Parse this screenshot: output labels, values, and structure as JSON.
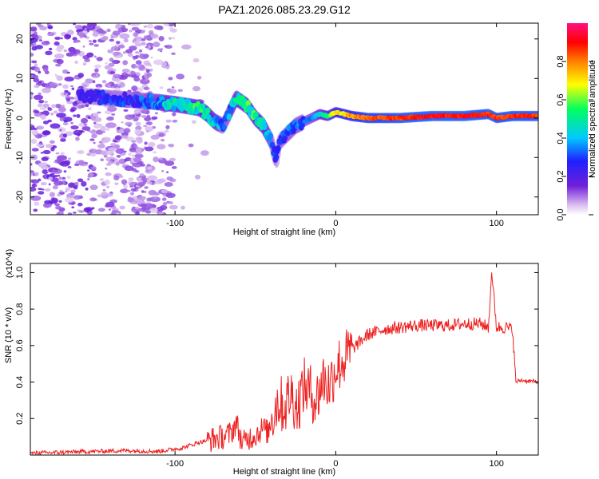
{
  "title": "PAZ1.2026.085.23.29.G12",
  "chart_data": [
    {
      "type": "heatmap",
      "name": "spectrogram",
      "xlabel": "Height of straight line (km)",
      "ylabel": "Frequency (Hz)",
      "xlim": [
        -190,
        126
      ],
      "ylim": [
        -24.5,
        24
      ],
      "xticks": [
        -100,
        0,
        100
      ],
      "yticks": [
        -20,
        -10,
        0,
        10,
        20
      ],
      "colorbar": {
        "label": "Normalized spectral amplitude",
        "range": [
          0,
          1
        ],
        "ticks": [
          0.0,
          0.2,
          0.4,
          0.6,
          0.8
        ],
        "colormap": [
          "#ffffff",
          "#dcc0f0",
          "#7020d8",
          "#2020ff",
          "#00c8ff",
          "#00ff60",
          "#ffff00",
          "#ff8000",
          "#ff0000",
          "#ff1080"
        ]
      },
      "main_trace": {
        "x": [
          -155,
          -140,
          -125,
          -110,
          -100,
          -92,
          -85,
          -80,
          -75,
          -70,
          -62,
          -55,
          -50,
          -45,
          -40,
          -37,
          -35,
          -30,
          -25,
          -20,
          -15,
          -10,
          -5,
          0,
          5,
          10,
          20,
          40,
          60,
          80,
          95,
          100,
          110,
          126
        ],
        "y": [
          5.5,
          5,
          4.5,
          4,
          3.5,
          3,
          2.5,
          1,
          -1,
          -2,
          5,
          3,
          0,
          -2,
          -6,
          -11,
          -6,
          -4,
          -2,
          -1,
          0,
          1,
          0.5,
          1.5,
          1,
          0.5,
          0,
          0,
          0.5,
          0.5,
          1,
          0,
          0.5,
          0.5
        ],
        "amp": [
          0.25,
          0.3,
          0.3,
          0.4,
          0.5,
          0.5,
          0.55,
          0.55,
          0.5,
          0.3,
          0.5,
          0.55,
          0.55,
          0.5,
          0.35,
          0.3,
          0.3,
          0.35,
          0.35,
          0.35,
          0.35,
          0.45,
          0.55,
          0.75,
          0.7,
          0.8,
          0.85,
          0.9,
          0.92,
          0.92,
          0.9,
          0.88,
          0.9,
          0.9
        ]
      }
    },
    {
      "type": "line",
      "name": "snr",
      "xlabel": "Height of straight line (km)",
      "ylabel": "SNR (10 * v/v)",
      "multiplier": "(x10^4)",
      "xlim": [
        -190,
        126
      ],
      "ylim": [
        0,
        1.05
      ],
      "xticks": [
        -100,
        0,
        100
      ],
      "yticks": [
        0.2,
        0.4,
        0.6,
        0.8,
        1.0
      ],
      "series": [
        {
          "name": "SNR",
          "color": "#ee2020",
          "x": [
            -190,
            -170,
            -150,
            -130,
            -110,
            -95,
            -85,
            -75,
            -70,
            -65,
            -62,
            -58,
            -55,
            -50,
            -45,
            -42,
            -40,
            -36,
            -32,
            -28,
            -24,
            -20,
            -16,
            -12,
            -8,
            -4,
            0,
            5,
            10,
            15,
            20,
            30,
            40,
            50,
            60,
            70,
            80,
            90,
            95,
            97,
            100,
            105,
            110,
            112,
            115,
            126
          ],
          "y": [
            0.01,
            0.015,
            0.02,
            0.025,
            0.02,
            0.04,
            0.07,
            0.09,
            0.1,
            0.12,
            0.18,
            0.06,
            0.09,
            0.11,
            0.15,
            0.12,
            0.2,
            0.3,
            0.26,
            0.34,
            0.26,
            0.38,
            0.35,
            0.3,
            0.42,
            0.38,
            0.48,
            0.52,
            0.58,
            0.62,
            0.66,
            0.69,
            0.7,
            0.71,
            0.71,
            0.71,
            0.72,
            0.72,
            0.7,
            1.0,
            0.7,
            0.7,
            0.69,
            0.4,
            0.41,
            0.4
          ]
        }
      ]
    }
  ]
}
